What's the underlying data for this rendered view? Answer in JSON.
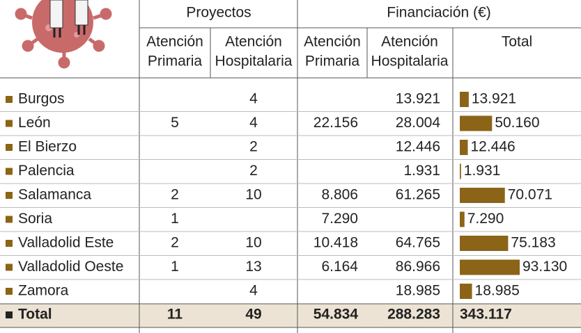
{
  "header": {
    "group1": "Proyectos",
    "group2": "Financiación (€)",
    "columns": [
      [
        "Atención",
        "Primaria"
      ],
      [
        "Atención",
        "Hospitalaria"
      ],
      [
        "Atención",
        "Primaria"
      ],
      [
        "Atención",
        "Hospitalaria"
      ],
      [
        "Total"
      ]
    ]
  },
  "rows": [
    {
      "name": "Burgos",
      "cells": [
        null,
        "4",
        null,
        "13.921"
      ]
    },
    {
      "name": "León",
      "cells": [
        "5",
        "4",
        "22.156",
        "28.004"
      ]
    },
    {
      "name": "El Bierzo",
      "cells": [
        null,
        "2",
        null,
        "12.446"
      ]
    },
    {
      "name": "Palencia",
      "cells": [
        null,
        "2",
        null,
        "1.931"
      ]
    },
    {
      "name": "Salamanca",
      "cells": [
        "2",
        "10",
        "8.806",
        "61.265"
      ]
    },
    {
      "name": "Soria",
      "cells": [
        "1",
        null,
        "7.290",
        null
      ]
    },
    {
      "name": "Valladolid Este",
      "cells": [
        "2",
        "10",
        "10.418",
        "64.765"
      ]
    },
    {
      "name": "Valladolid Oeste",
      "cells": [
        "1",
        "13",
        "6.164",
        "86.966"
      ]
    },
    {
      "name": "Zamora",
      "cells": [
        null,
        "4",
        null,
        "18.985"
      ]
    }
  ],
  "bars": {
    "values": [
      13921,
      50160,
      12446,
      1931,
      70071,
      7290,
      75183,
      93130,
      18985
    ],
    "value_labels": [
      "13.921",
      "50.160",
      "12.446",
      "1.931",
      "70.071",
      "7.290",
      "75.183",
      "93.130",
      "18.985"
    ],
    "color": "#8b6418"
  },
  "total_row": {
    "label": "Total",
    "cells": [
      "11",
      "49",
      "54.834",
      "288.283"
    ],
    "total": "343.117"
  }
}
